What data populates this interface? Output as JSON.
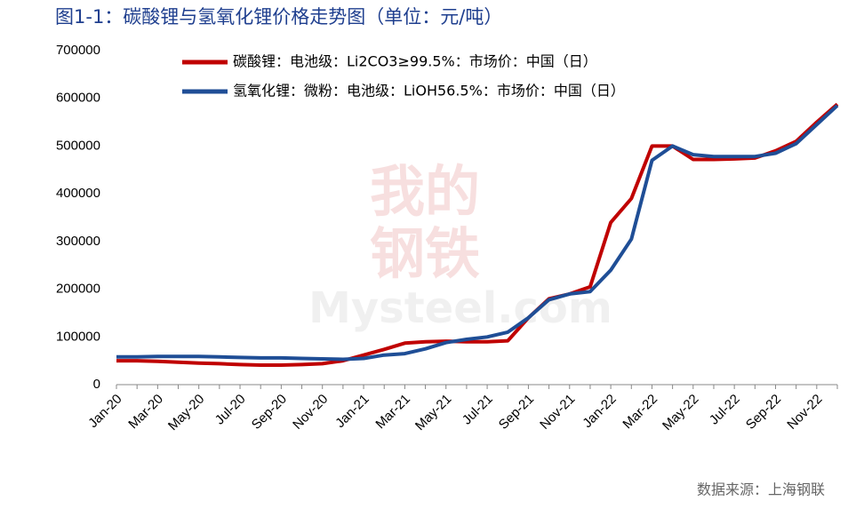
{
  "chart_data": {
    "type": "line",
    "title": "图1-1：碳酸锂与氢氧化锂价格走势图（单位：元/吨）",
    "source": "数据来源：上海钢联",
    "watermark": [
      "我的",
      "钢铁",
      "Mysteel.com"
    ],
    "categories": [
      "Jan-20",
      null,
      "Mar-20",
      null,
      "May-20",
      null,
      "Jul-20",
      null,
      "Sep-20",
      null,
      "Nov-20",
      null,
      "Jan-21",
      null,
      "Mar-21",
      null,
      "May-21",
      null,
      "Jul-21",
      null,
      "Sep-21",
      null,
      "Nov-21",
      null,
      "Jan-22",
      null,
      "Mar-22",
      null,
      "May-22",
      null,
      "Jul-22",
      null,
      "Sep-22",
      null,
      "Nov-22",
      null
    ],
    "series": [
      {
        "name": "碳酸锂：电池级：Li2CO3≥99.5%：市场价：中国（日）",
        "color": "#c00000",
        "values": [
          50000,
          50000,
          49000,
          47000,
          45000,
          44000,
          42000,
          41000,
          41000,
          42000,
          44000,
          50000,
          62000,
          74000,
          87000,
          90000,
          91000,
          90000,
          90000,
          92000,
          140000,
          180000,
          190000,
          205000,
          340000,
          390000,
          500000,
          500000,
          472000,
          472000,
          473000,
          475000,
          490000,
          510000,
          550000,
          588000
        ]
      },
      {
        "name": "氢氧化锂：微粉：电池级：LiOH56.5%：市场价：中国（日）",
        "color": "#1f4e96",
        "values": [
          58000,
          58000,
          59000,
          59000,
          59000,
          58000,
          57000,
          56000,
          56000,
          55000,
          54000,
          53000,
          55000,
          62000,
          65000,
          75000,
          88000,
          95000,
          100000,
          110000,
          140000,
          178000,
          190000,
          195000,
          240000,
          305000,
          470000,
          500000,
          482000,
          478000,
          478000,
          478000,
          485000,
          505000,
          545000,
          585000
        ]
      }
    ],
    "ylim": [
      0,
      700000
    ],
    "yticks": [
      0,
      100000,
      200000,
      300000,
      400000,
      500000,
      600000,
      700000
    ]
  }
}
